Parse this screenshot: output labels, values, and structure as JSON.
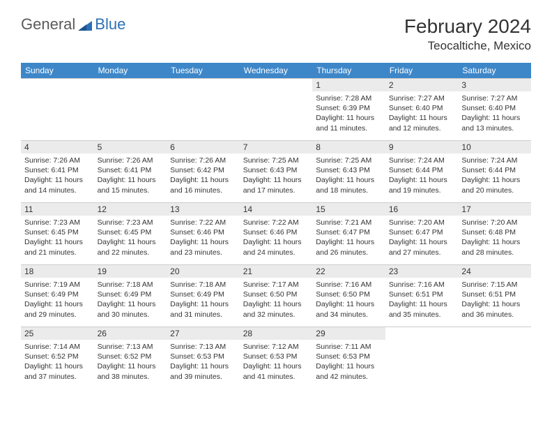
{
  "logo": {
    "text1": "General",
    "text2": "Blue"
  },
  "title": "February 2024",
  "location": "Teocaltiche, Mexico",
  "colors": {
    "header_bg": "#3d87c9",
    "header_text": "#ffffff",
    "daynum_bg": "#ebebeb",
    "text": "#333333",
    "border": "#cccccc",
    "logo_gray": "#5a5a5a",
    "logo_blue": "#2d6fb5"
  },
  "day_headers": [
    "Sunday",
    "Monday",
    "Tuesday",
    "Wednesday",
    "Thursday",
    "Friday",
    "Saturday"
  ],
  "weeks": [
    [
      null,
      null,
      null,
      null,
      {
        "n": "1",
        "sr": "7:28 AM",
        "ss": "6:39 PM",
        "dl": "11 hours and 11 minutes."
      },
      {
        "n": "2",
        "sr": "7:27 AM",
        "ss": "6:40 PM",
        "dl": "11 hours and 12 minutes."
      },
      {
        "n": "3",
        "sr": "7:27 AM",
        "ss": "6:40 PM",
        "dl": "11 hours and 13 minutes."
      }
    ],
    [
      {
        "n": "4",
        "sr": "7:26 AM",
        "ss": "6:41 PM",
        "dl": "11 hours and 14 minutes."
      },
      {
        "n": "5",
        "sr": "7:26 AM",
        "ss": "6:41 PM",
        "dl": "11 hours and 15 minutes."
      },
      {
        "n": "6",
        "sr": "7:26 AM",
        "ss": "6:42 PM",
        "dl": "11 hours and 16 minutes."
      },
      {
        "n": "7",
        "sr": "7:25 AM",
        "ss": "6:43 PM",
        "dl": "11 hours and 17 minutes."
      },
      {
        "n": "8",
        "sr": "7:25 AM",
        "ss": "6:43 PM",
        "dl": "11 hours and 18 minutes."
      },
      {
        "n": "9",
        "sr": "7:24 AM",
        "ss": "6:44 PM",
        "dl": "11 hours and 19 minutes."
      },
      {
        "n": "10",
        "sr": "7:24 AM",
        "ss": "6:44 PM",
        "dl": "11 hours and 20 minutes."
      }
    ],
    [
      {
        "n": "11",
        "sr": "7:23 AM",
        "ss": "6:45 PM",
        "dl": "11 hours and 21 minutes."
      },
      {
        "n": "12",
        "sr": "7:23 AM",
        "ss": "6:45 PM",
        "dl": "11 hours and 22 minutes."
      },
      {
        "n": "13",
        "sr": "7:22 AM",
        "ss": "6:46 PM",
        "dl": "11 hours and 23 minutes."
      },
      {
        "n": "14",
        "sr": "7:22 AM",
        "ss": "6:46 PM",
        "dl": "11 hours and 24 minutes."
      },
      {
        "n": "15",
        "sr": "7:21 AM",
        "ss": "6:47 PM",
        "dl": "11 hours and 26 minutes."
      },
      {
        "n": "16",
        "sr": "7:20 AM",
        "ss": "6:47 PM",
        "dl": "11 hours and 27 minutes."
      },
      {
        "n": "17",
        "sr": "7:20 AM",
        "ss": "6:48 PM",
        "dl": "11 hours and 28 minutes."
      }
    ],
    [
      {
        "n": "18",
        "sr": "7:19 AM",
        "ss": "6:49 PM",
        "dl": "11 hours and 29 minutes."
      },
      {
        "n": "19",
        "sr": "7:18 AM",
        "ss": "6:49 PM",
        "dl": "11 hours and 30 minutes."
      },
      {
        "n": "20",
        "sr": "7:18 AM",
        "ss": "6:49 PM",
        "dl": "11 hours and 31 minutes."
      },
      {
        "n": "21",
        "sr": "7:17 AM",
        "ss": "6:50 PM",
        "dl": "11 hours and 32 minutes."
      },
      {
        "n": "22",
        "sr": "7:16 AM",
        "ss": "6:50 PM",
        "dl": "11 hours and 34 minutes."
      },
      {
        "n": "23",
        "sr": "7:16 AM",
        "ss": "6:51 PM",
        "dl": "11 hours and 35 minutes."
      },
      {
        "n": "24",
        "sr": "7:15 AM",
        "ss": "6:51 PM",
        "dl": "11 hours and 36 minutes."
      }
    ],
    [
      {
        "n": "25",
        "sr": "7:14 AM",
        "ss": "6:52 PM",
        "dl": "11 hours and 37 minutes."
      },
      {
        "n": "26",
        "sr": "7:13 AM",
        "ss": "6:52 PM",
        "dl": "11 hours and 38 minutes."
      },
      {
        "n": "27",
        "sr": "7:13 AM",
        "ss": "6:53 PM",
        "dl": "11 hours and 39 minutes."
      },
      {
        "n": "28",
        "sr": "7:12 AM",
        "ss": "6:53 PM",
        "dl": "11 hours and 41 minutes."
      },
      {
        "n": "29",
        "sr": "7:11 AM",
        "ss": "6:53 PM",
        "dl": "11 hours and 42 minutes."
      },
      null,
      null
    ]
  ],
  "labels": {
    "sunrise": "Sunrise:",
    "sunset": "Sunset:",
    "daylight": "Daylight:"
  }
}
